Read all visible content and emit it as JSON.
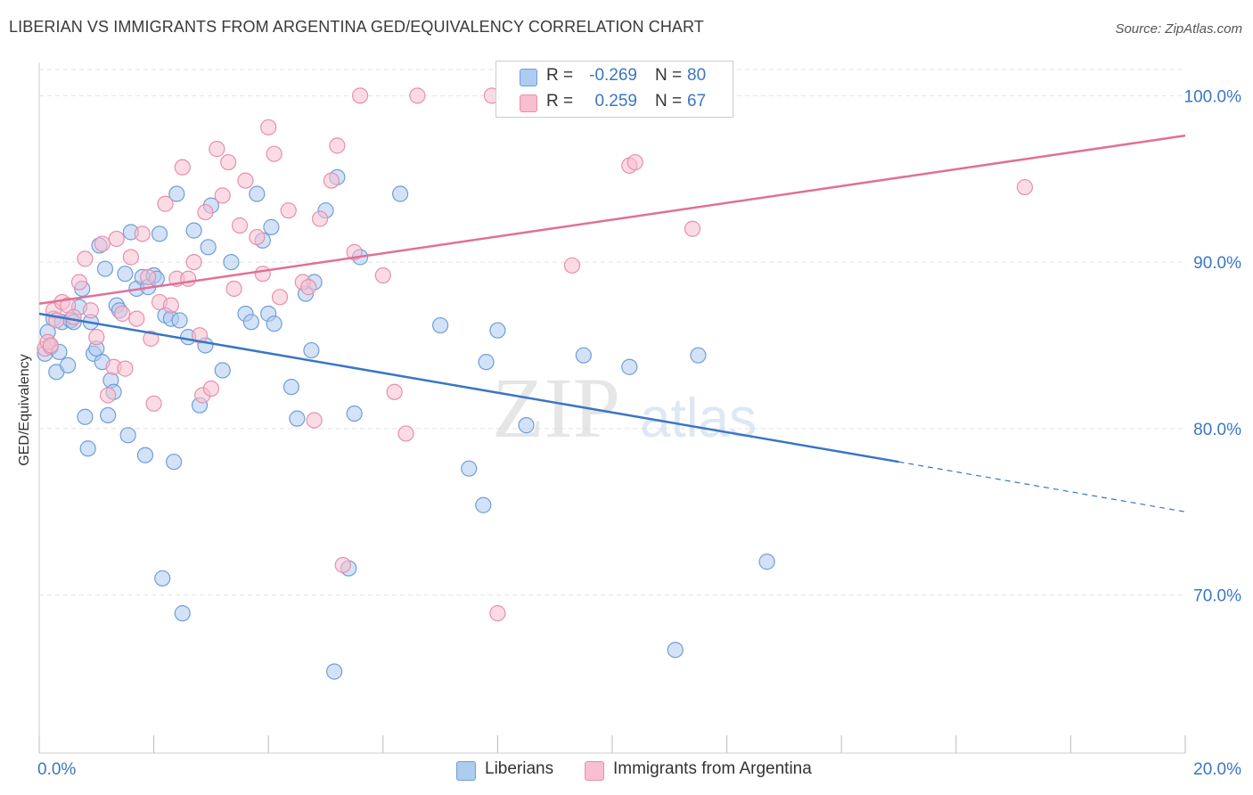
{
  "title": "LIBERIAN VS IMMIGRANTS FROM ARGENTINA GED/EQUIVALENCY CORRELATION CHART",
  "source": "Source: ZipAtlas.com",
  "watermark": {
    "zip": "ZIP",
    "atlas": "atlas"
  },
  "legend": {
    "rows": [
      {
        "r_label": "R =",
        "r_value": "-0.269",
        "n_label": "N =",
        "n_value": "80",
        "color": "#aecbf0"
      },
      {
        "r_label": "R =",
        "r_value": "0.259",
        "n_label": "N =",
        "n_value": "67",
        "color": "#f7bfd0"
      }
    ]
  },
  "bottom_legend": {
    "liberians": "Liberians",
    "argentina": "Immigrants from Argentina"
  },
  "colors": {
    "blue_fill": "#aecbf0",
    "blue_stroke": "#6f9fd8",
    "blue_line": "#3a76c4",
    "pink_fill": "#f7bfd0",
    "pink_stroke": "#e88fac",
    "pink_line": "#e07098",
    "axis_text": "#3a76c4",
    "grid": "#e3e3e3"
  },
  "chart_data": {
    "type": "scatter",
    "title": "LIBERIAN VS IMMIGRANTS FROM ARGENTINA GED/EQUIVALENCY CORRELATION CHART",
    "xlabel": "",
    "ylabel": "GED/Equivalency",
    "xlim": [
      0,
      20
    ],
    "ylim": [
      60.5,
      102
    ],
    "x_tick_labels": [
      "0.0%",
      "20.0%"
    ],
    "y_ticks": [
      70,
      80,
      90,
      100
    ],
    "y_tick_labels": [
      "70.0%",
      "80.0%",
      "90.0%",
      "100.0%"
    ],
    "grid": true,
    "legend_position": "top-center",
    "series": [
      {
        "name": "Liberians",
        "color": "#aecbf0",
        "trend": {
          "x_start": 0,
          "y_start": 86.9,
          "x_solid_end": 15.0,
          "y_solid_end": 78.0,
          "x_end": 20.0,
          "y_end": 75.0
        },
        "points": [
          [
            0.1,
            84.5
          ],
          [
            0.15,
            85.8
          ],
          [
            0.2,
            84.9
          ],
          [
            0.25,
            86.6
          ],
          [
            0.3,
            83.4
          ],
          [
            0.35,
            84.6
          ],
          [
            0.4,
            86.4
          ],
          [
            0.5,
            83.8
          ],
          [
            0.55,
            86.5
          ],
          [
            0.6,
            86.4
          ],
          [
            0.7,
            87.3
          ],
          [
            0.75,
            88.4
          ],
          [
            0.8,
            80.7
          ],
          [
            0.85,
            78.8
          ],
          [
            0.9,
            86.4
          ],
          [
            0.95,
            84.5
          ],
          [
            1.0,
            84.8
          ],
          [
            1.05,
            91.0
          ],
          [
            1.1,
            84.0
          ],
          [
            1.15,
            89.6
          ],
          [
            1.2,
            80.8
          ],
          [
            1.25,
            82.9
          ],
          [
            1.3,
            82.2
          ],
          [
            1.35,
            87.4
          ],
          [
            1.4,
            87.1
          ],
          [
            1.5,
            89.3
          ],
          [
            1.55,
            79.6
          ],
          [
            1.6,
            91.8
          ],
          [
            1.7,
            88.4
          ],
          [
            1.8,
            89.1
          ],
          [
            1.85,
            78.4
          ],
          [
            1.9,
            88.5
          ],
          [
            2.0,
            89.2
          ],
          [
            2.05,
            89.0
          ],
          [
            2.1,
            91.7
          ],
          [
            2.15,
            71.0
          ],
          [
            2.2,
            86.8
          ],
          [
            2.3,
            86.6
          ],
          [
            2.35,
            78.0
          ],
          [
            2.4,
            94.1
          ],
          [
            2.45,
            86.5
          ],
          [
            2.5,
            68.9
          ],
          [
            2.6,
            85.5
          ],
          [
            2.7,
            91.9
          ],
          [
            2.8,
            81.4
          ],
          [
            2.9,
            85.0
          ],
          [
            2.95,
            90.9
          ],
          [
            3.0,
            93.4
          ],
          [
            3.2,
            83.5
          ],
          [
            3.35,
            90.0
          ],
          [
            3.6,
            86.9
          ],
          [
            3.7,
            86.4
          ],
          [
            3.8,
            94.1
          ],
          [
            3.9,
            91.3
          ],
          [
            4.0,
            86.9
          ],
          [
            4.05,
            92.1
          ],
          [
            4.1,
            86.3
          ],
          [
            4.4,
            82.5
          ],
          [
            4.5,
            80.6
          ],
          [
            4.65,
            88.1
          ],
          [
            4.75,
            84.7
          ],
          [
            4.8,
            88.8
          ],
          [
            5.0,
            93.1
          ],
          [
            5.15,
            65.4
          ],
          [
            5.2,
            95.1
          ],
          [
            5.4,
            71.6
          ],
          [
            5.5,
            80.9
          ],
          [
            5.6,
            90.3
          ],
          [
            6.3,
            94.1
          ],
          [
            7.0,
            86.2
          ],
          [
            7.5,
            77.6
          ],
          [
            7.75,
            75.4
          ],
          [
            7.8,
            84.0
          ],
          [
            8.0,
            85.9
          ],
          [
            8.5,
            80.2
          ],
          [
            9.5,
            84.4
          ],
          [
            10.3,
            83.7
          ],
          [
            11.1,
            66.7
          ],
          [
            12.7,
            72.0
          ],
          [
            11.5,
            84.4
          ]
        ]
      },
      {
        "name": "Immigrants from Argentina",
        "color": "#f7bfd0",
        "trend": {
          "x_start": 0,
          "y_start": 87.5,
          "x_end": 20.0,
          "y_end": 97.6
        },
        "points": [
          [
            0.1,
            84.8
          ],
          [
            0.15,
            85.2
          ],
          [
            0.2,
            85.0
          ],
          [
            0.25,
            87.1
          ],
          [
            0.3,
            86.5
          ],
          [
            0.4,
            87.6
          ],
          [
            0.5,
            87.4
          ],
          [
            0.6,
            86.7
          ],
          [
            0.7,
            88.8
          ],
          [
            0.8,
            90.2
          ],
          [
            0.9,
            87.1
          ],
          [
            1.0,
            85.5
          ],
          [
            1.1,
            91.1
          ],
          [
            1.2,
            82.0
          ],
          [
            1.3,
            83.7
          ],
          [
            1.35,
            91.4
          ],
          [
            1.45,
            86.9
          ],
          [
            1.5,
            83.6
          ],
          [
            1.6,
            90.3
          ],
          [
            1.7,
            86.6
          ],
          [
            1.8,
            91.7
          ],
          [
            1.9,
            89.1
          ],
          [
            1.95,
            85.4
          ],
          [
            2.0,
            81.5
          ],
          [
            2.1,
            87.6
          ],
          [
            2.2,
            93.5
          ],
          [
            2.3,
            87.4
          ],
          [
            2.4,
            89.0
          ],
          [
            2.5,
            95.7
          ],
          [
            2.6,
            89.0
          ],
          [
            2.7,
            90.0
          ],
          [
            2.8,
            85.6
          ],
          [
            2.85,
            82.0
          ],
          [
            2.9,
            93.0
          ],
          [
            3.0,
            82.4
          ],
          [
            3.1,
            96.8
          ],
          [
            3.2,
            94.0
          ],
          [
            3.3,
            96.0
          ],
          [
            3.4,
            88.4
          ],
          [
            3.5,
            92.2
          ],
          [
            3.6,
            94.9
          ],
          [
            3.8,
            91.5
          ],
          [
            3.9,
            89.3
          ],
          [
            4.0,
            98.1
          ],
          [
            4.1,
            96.5
          ],
          [
            4.2,
            87.9
          ],
          [
            4.35,
            93.1
          ],
          [
            4.6,
            88.8
          ],
          [
            4.7,
            88.5
          ],
          [
            4.8,
            80.5
          ],
          [
            4.9,
            92.6
          ],
          [
            5.1,
            94.9
          ],
          [
            5.2,
            97.0
          ],
          [
            5.3,
            71.8
          ],
          [
            5.5,
            90.6
          ],
          [
            5.6,
            100.0
          ],
          [
            6.0,
            89.2
          ],
          [
            6.2,
            82.2
          ],
          [
            6.4,
            79.7
          ],
          [
            6.6,
            100.0
          ],
          [
            7.9,
            100.0
          ],
          [
            8.0,
            68.9
          ],
          [
            9.3,
            89.8
          ],
          [
            10.3,
            95.8
          ],
          [
            10.4,
            96.0
          ],
          [
            11.4,
            92.0
          ],
          [
            17.2,
            94.5
          ]
        ]
      }
    ]
  }
}
